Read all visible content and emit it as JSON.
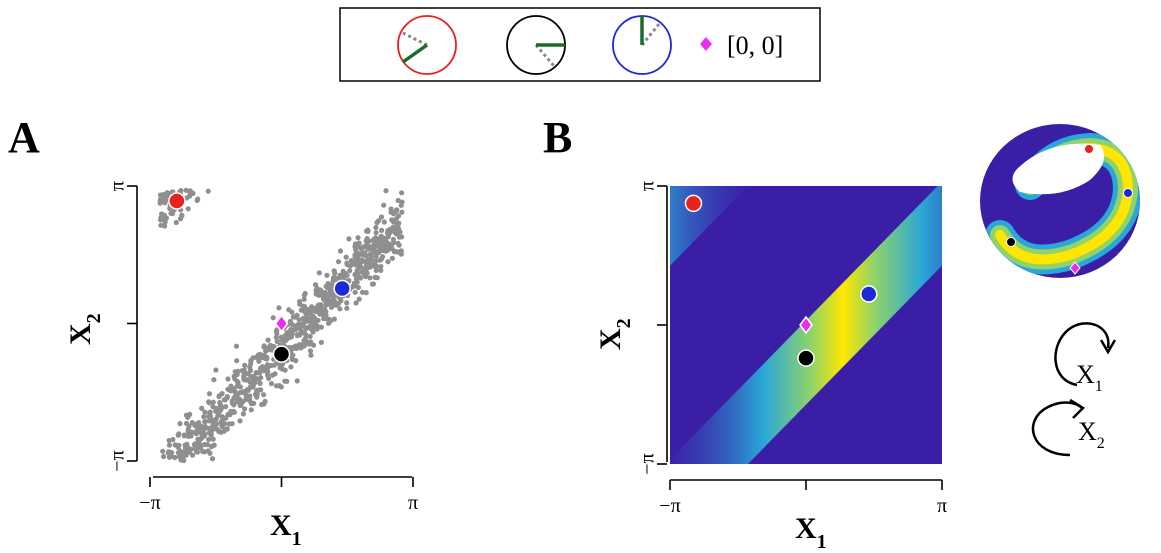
{
  "colors": {
    "red": "#e8221c",
    "black": "#000000",
    "blue": "#1c2ad6",
    "magenta": "#ea2ee9",
    "scatter_gray": "#8f8f8f",
    "field_background": "#3a1fa6",
    "hand_green": "#1b6b2e"
  },
  "legend": {
    "items": [
      {
        "name": "red",
        "ring_color": "#e8221c"
      },
      {
        "name": "black",
        "ring_color": "#000000"
      },
      {
        "name": "blue",
        "ring_color": "#1c2ad6"
      }
    ],
    "origin_label": "[0, 0]"
  },
  "panel_labels": {
    "a": "A",
    "b": "B"
  },
  "ticks": {
    "neg_pi": "−π",
    "zero": "",
    "pi": "π"
  },
  "axes": {
    "x_main": "X",
    "x_sub": "1",
    "y_main": "X",
    "y_sub": "2"
  },
  "torus_labels": {
    "x1_main": "X",
    "x1_sub": "1",
    "x2_main": "X",
    "x2_sub": "2"
  },
  "chart_data": [
    {
      "type": "scatter",
      "panel": "A",
      "xlim": [
        -3.1416,
        3.1416
      ],
      "ylim": [
        -3.1416,
        3.1416
      ],
      "x_ticks": [
        "−π",
        "",
        "π"
      ],
      "y_ticks": [
        "−π",
        "",
        "π"
      ],
      "xlabel": "X1",
      "ylabel": "X2",
      "cloud": {
        "relation": "x2 ≈ x1 − 0.6 (wrapped)",
        "n_points": 900,
        "x_range": [
          -2.9,
          2.9
        ],
        "spread": 0.35,
        "color": "gray"
      },
      "highlight_points": [
        {
          "name": "red",
          "x": -2.5,
          "y": 2.8
        },
        {
          "name": "black",
          "x": 0.0,
          "y": -0.7
        },
        {
          "name": "blue",
          "x": 1.45,
          "y": 0.8
        }
      ],
      "origin_marker": {
        "x": 0,
        "y": 0,
        "shape": "diamond"
      }
    },
    {
      "type": "heatmap",
      "panel": "B",
      "xlim": [
        -3.1416,
        3.1416
      ],
      "ylim": [
        -3.1416,
        3.1416
      ],
      "x_ticks": [
        "−π",
        "",
        "π"
      ],
      "y_ticks": [
        "−π",
        "",
        "π"
      ],
      "xlabel": "X1",
      "ylabel": "X2",
      "density": {
        "ridge": "x2 = x1 − 0.85 (wrapped)",
        "width": 0.3
      },
      "highlight_points": [
        {
          "name": "red",
          "x": -2.6,
          "y": 2.75
        },
        {
          "name": "black",
          "x": 0.0,
          "y": -0.75
        },
        {
          "name": "blue",
          "x": 1.45,
          "y": 0.7
        }
      ],
      "origin_marker": {
        "x": 0,
        "y": 0,
        "shape": "diamond"
      }
    }
  ]
}
